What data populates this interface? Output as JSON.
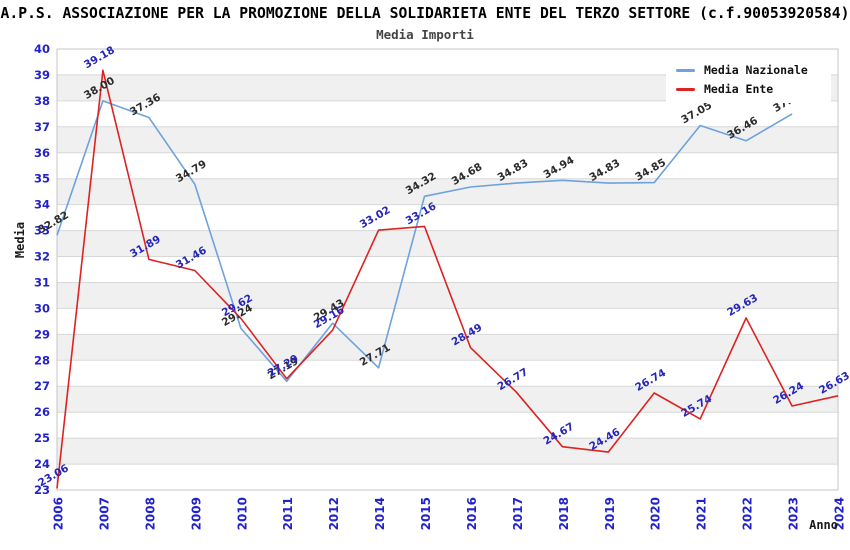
{
  "header": {
    "title": "A.P.S. ASSOCIAZIONE PER LA PROMOZIONE DELLA SOLIDARIETA ENTE DEL TERZO SETTORE (c.f.90053920584)",
    "subtitle": "Media Importi"
  },
  "legend": {
    "items": [
      {
        "label": "Media Nazionale",
        "color": "#6ea2dc"
      },
      {
        "label": "Media Ente",
        "color": "#dd2222"
      }
    ]
  },
  "axes": {
    "y_label": "Media",
    "x_label": "Anno",
    "y_ticks": [
      23,
      24,
      25,
      26,
      27,
      28,
      29,
      30,
      31,
      32,
      33,
      34,
      35,
      36,
      37,
      38,
      39,
      40
    ],
    "tick_color": "#2222cc"
  },
  "chart_data": {
    "type": "line",
    "title": "Media Importi",
    "xlabel": "Anno",
    "ylabel": "Media",
    "ylim": [
      23,
      40
    ],
    "grid": true,
    "band_fill": "#f0f0f0",
    "grid_color": "#d8d8d8",
    "border_color": "#c6c6c6",
    "legend_position": "top-right",
    "x": [
      "2006",
      "2007",
      "2008",
      "2009",
      "2010",
      "2011",
      "2012",
      "2014",
      "2015",
      "2016",
      "2017",
      "2018",
      "2019",
      "2020",
      "2021",
      "2022",
      "2023",
      "2024"
    ],
    "series": [
      {
        "name": "Media Nazionale",
        "color": "#6ea2dc",
        "label_color": "#2b2b2b",
        "values": [
          32.82,
          38.0,
          37.36,
          34.79,
          29.24,
          27.19,
          29.43,
          27.71,
          34.32,
          34.68,
          34.83,
          34.94,
          34.83,
          34.85,
          37.05,
          36.46,
          37.5,
          null
        ]
      },
      {
        "name": "Media Ente",
        "color": "#dd2222",
        "label_color": "#2525bb",
        "values": [
          23.06,
          39.18,
          31.89,
          31.46,
          29.62,
          27.29,
          29.16,
          33.02,
          33.16,
          28.49,
          26.77,
          24.67,
          24.46,
          26.74,
          25.74,
          29.63,
          26.24,
          26.63
        ]
      }
    ]
  }
}
